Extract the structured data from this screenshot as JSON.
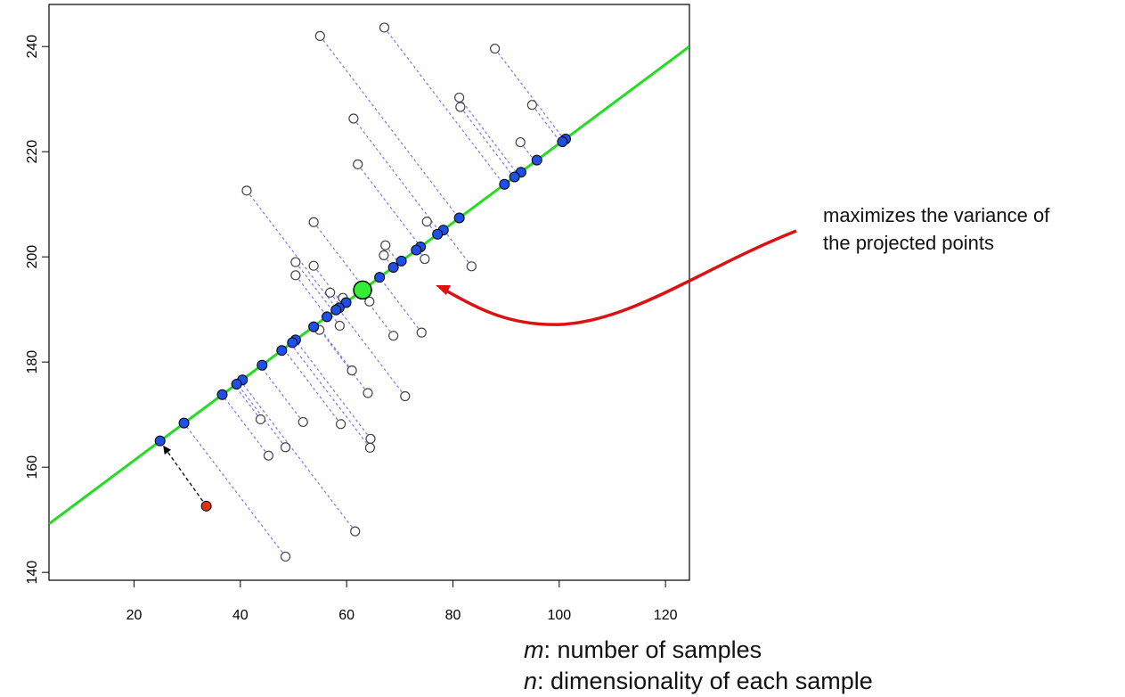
{
  "chart_data": {
    "type": "scatter",
    "title": "",
    "xlabel": "",
    "ylabel": "",
    "xlim": [
      4,
      124.5
    ],
    "ylim": [
      138.5,
      248
    ],
    "x_ticks": [
      20,
      40,
      60,
      80,
      100,
      120
    ],
    "y_ticks": [
      140,
      160,
      180,
      200,
      220,
      240
    ],
    "grid": false,
    "principal_axis": {
      "color": "#22dd22",
      "slope": 0.7535,
      "intercept": 146.2
    },
    "mean_point": {
      "x": 63.0,
      "y": 193.7,
      "color": "#33ee33"
    },
    "projection_line_color": "#7777ee",
    "projected_point_color": "#1e4fe6",
    "original_points": [
      {
        "x": 67.1,
        "y": 243.6
      },
      {
        "x": 55.0,
        "y": 242.0
      },
      {
        "x": 87.9,
        "y": 239.6
      },
      {
        "x": 81.2,
        "y": 230.3
      },
      {
        "x": 81.4,
        "y": 228.5
      },
      {
        "x": 94.9,
        "y": 228.9
      },
      {
        "x": 61.3,
        "y": 226.3
      },
      {
        "x": 92.7,
        "y": 221.8
      },
      {
        "x": 62.1,
        "y": 217.6
      },
      {
        "x": 41.2,
        "y": 212.6
      },
      {
        "x": 53.8,
        "y": 206.6
      },
      {
        "x": 75.1,
        "y": 206.7
      },
      {
        "x": 67.3,
        "y": 202.2
      },
      {
        "x": 67.0,
        "y": 200.3
      },
      {
        "x": 74.7,
        "y": 199.6
      },
      {
        "x": 50.4,
        "y": 199.0
      },
      {
        "x": 53.8,
        "y": 198.3
      },
      {
        "x": 83.5,
        "y": 198.2
      },
      {
        "x": 50.4,
        "y": 196.5
      },
      {
        "x": 56.9,
        "y": 193.2
      },
      {
        "x": 59.3,
        "y": 192.2
      },
      {
        "x": 64.3,
        "y": 191.5
      },
      {
        "x": 58.7,
        "y": 186.9
      },
      {
        "x": 54.9,
        "y": 186.1
      },
      {
        "x": 68.8,
        "y": 185.0
      },
      {
        "x": 74.1,
        "y": 185.6
      },
      {
        "x": 61.0,
        "y": 178.4
      },
      {
        "x": 71.0,
        "y": 173.5
      },
      {
        "x": 64.0,
        "y": 174.1
      },
      {
        "x": 43.8,
        "y": 169.1
      },
      {
        "x": 51.8,
        "y": 168.6
      },
      {
        "x": 58.9,
        "y": 168.2
      },
      {
        "x": 64.5,
        "y": 165.4
      },
      {
        "x": 48.5,
        "y": 163.8
      },
      {
        "x": 64.4,
        "y": 163.7
      },
      {
        "x": 45.3,
        "y": 162.2
      },
      {
        "x": 61.6,
        "y": 147.8
      },
      {
        "x": 48.5,
        "y": 143.0
      }
    ],
    "projected_points": [
      {
        "x": 101.2,
        "y": 222.4
      },
      {
        "x": 100.6,
        "y": 221.9
      },
      {
        "x": 95.8,
        "y": 218.4
      },
      {
        "x": 92.8,
        "y": 216.1
      },
      {
        "x": 91.6,
        "y": 215.2
      },
      {
        "x": 89.7,
        "y": 213.8
      },
      {
        "x": 81.2,
        "y": 207.4
      },
      {
        "x": 78.2,
        "y": 205.1
      },
      {
        "x": 77.1,
        "y": 204.3
      },
      {
        "x": 73.9,
        "y": 201.9
      },
      {
        "x": 73.1,
        "y": 201.3
      },
      {
        "x": 70.3,
        "y": 199.2
      },
      {
        "x": 68.8,
        "y": 198.0
      },
      {
        "x": 66.2,
        "y": 196.1
      },
      {
        "x": 59.9,
        "y": 191.3
      },
      {
        "x": 58.6,
        "y": 190.3
      },
      {
        "x": 58.0,
        "y": 189.9
      },
      {
        "x": 56.3,
        "y": 188.6
      },
      {
        "x": 53.8,
        "y": 186.7
      },
      {
        "x": 50.4,
        "y": 184.2
      },
      {
        "x": 49.8,
        "y": 183.7
      },
      {
        "x": 47.8,
        "y": 182.2
      },
      {
        "x": 44.1,
        "y": 179.4
      },
      {
        "x": 40.4,
        "y": 176.6
      },
      {
        "x": 39.3,
        "y": 175.8
      },
      {
        "x": 36.6,
        "y": 173.8
      },
      {
        "x": 29.4,
        "y": 168.4
      },
      {
        "x": 24.9,
        "y": 165.0
      }
    ],
    "highlight_point": {
      "x": 33.6,
      "y": 152.6,
      "color": "#dd3311",
      "projection": {
        "x": 24.9,
        "y": 165.0
      }
    },
    "annotation_arrow_color": "#dd1111"
  },
  "annotation": {
    "line1": "maximizes the variance of",
    "line2": "the projected points"
  },
  "footnotes": {
    "m_var": "m",
    "m_text": ": number of samples",
    "n_var": "n",
    "n_text": ": dimensionality of each sample"
  }
}
